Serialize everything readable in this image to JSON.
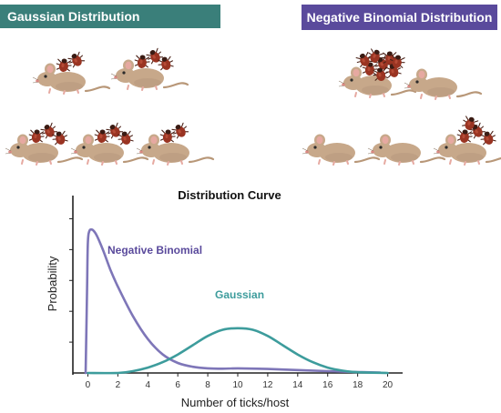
{
  "colors": {
    "gaussian": "#3d9c9c",
    "negative_binomial": "#6c6cb4",
    "gaussian_banner": "#3a7f7a",
    "nb_banner": "#5a4a9c",
    "tick": "#9a3422",
    "mouse": "#c7a88a"
  },
  "panels": {
    "gaussian": {
      "title": "Gaussian Distribution",
      "mice": [
        {
          "ticks": 2
        },
        {
          "ticks": 3
        },
        {
          "ticks": 3
        },
        {
          "ticks": 3
        },
        {
          "ticks": 2
        }
      ]
    },
    "negative_binomial": {
      "title": "Negative Binomial  Distribution",
      "mice": [
        {
          "ticks": 8
        },
        {
          "ticks": 0
        },
        {
          "ticks": 0
        },
        {
          "ticks": 0
        },
        {
          "ticks": 4
        }
      ]
    },
    "tick_icon": "tick-icon",
    "mouse_icon": "mouse-icon"
  },
  "chart_data": {
    "type": "line",
    "title": "Distribution Curve",
    "xlabel": "Number of ticks/host",
    "ylabel": "Probability",
    "xlim": [
      -1,
      21
    ],
    "ylim": [
      0,
      1.05
    ],
    "xticks": [
      0,
      2,
      4,
      6,
      8,
      10,
      12,
      14,
      16,
      18,
      20
    ],
    "yticks": [
      0.2,
      0.4,
      0.6,
      0.8,
      1.0
    ],
    "grid": false,
    "series": [
      {
        "name": "Negative Binomial",
        "color": "#7e76b8",
        "x": [
          -0.15,
          -0.05,
          0,
          0.1,
          0.25,
          0.4,
          0.6,
          1.0,
          1.5,
          2.0,
          3.0,
          4.0,
          5.0,
          6.0,
          7.0,
          8.0,
          9.0,
          10.0,
          12.0,
          14.0,
          16.0,
          18.0,
          19.5
        ],
        "y": [
          0.0,
          0.55,
          0.85,
          0.92,
          0.93,
          0.92,
          0.89,
          0.8,
          0.67,
          0.56,
          0.37,
          0.22,
          0.12,
          0.065,
          0.04,
          0.03,
          0.028,
          0.03,
          0.026,
          0.019,
          0.012,
          0.006,
          0.003
        ]
      },
      {
        "name": "Gaussian",
        "color": "#3d9c9c",
        "x": [
          0,
          2,
          3,
          4,
          5,
          6,
          7,
          8,
          9,
          10,
          11,
          12,
          13,
          14,
          15,
          16,
          17,
          18,
          20
        ],
        "y": [
          0.0,
          0.0,
          0.012,
          0.035,
          0.07,
          0.12,
          0.18,
          0.24,
          0.28,
          0.29,
          0.28,
          0.24,
          0.18,
          0.12,
          0.07,
          0.035,
          0.015,
          0.005,
          0.0
        ]
      }
    ],
    "annotations": [
      {
        "text": "Negative Binomial",
        "series": "Negative Binomial"
      },
      {
        "text": "Gaussian",
        "series": "Gaussian"
      }
    ]
  }
}
